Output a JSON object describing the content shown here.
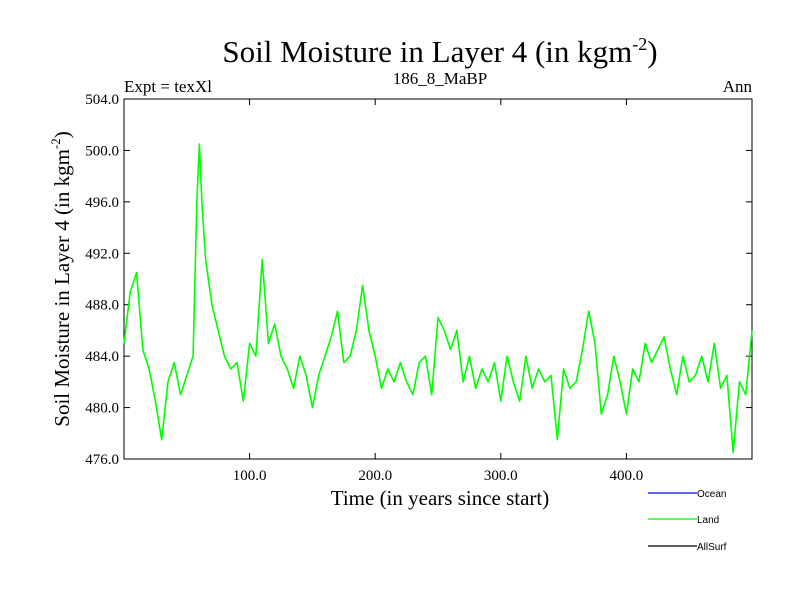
{
  "chart_data": {
    "type": "line",
    "title": "Soil Moisture in Layer 4 (in kgm",
    "title_superscript": "-2",
    "title_suffix": ")",
    "subtitle_left": "Expt = texXl",
    "subtitle_center": "186_8_MaBP",
    "subtitle_right": "Ann",
    "xlabel": "Time (in years since start)",
    "ylabel": "Soil Moisture in Layer 4 (in kgm",
    "ylabel_superscript": "-2",
    "ylabel_suffix": ")",
    "xlim": [
      0,
      500
    ],
    "ylim": [
      476,
      504
    ],
    "xticks": [
      100,
      200,
      300,
      400
    ],
    "xtick_labels": [
      "100.0",
      "200.0",
      "300.0",
      "400.0"
    ],
    "yticks": [
      476,
      480,
      484,
      488,
      492,
      496,
      500,
      504
    ],
    "ytick_labels": [
      "476.0",
      "480.0",
      "484.0",
      "488.0",
      "492.0",
      "496.0",
      "500.0",
      "504.0"
    ],
    "legend_position": "bottom-right",
    "colors": {
      "Ocean": "#0000ff",
      "Land": "#00ff00",
      "AllSurf": "#000000"
    },
    "series": [
      {
        "name": "Ocean",
        "values": []
      },
      {
        "name": "Land",
        "x": [
          0,
          5,
          10,
          15,
          20,
          25,
          30,
          35,
          40,
          45,
          50,
          55,
          58,
          60,
          62,
          65,
          70,
          75,
          80,
          85,
          90,
          95,
          100,
          105,
          110,
          112,
          115,
          120,
          125,
          130,
          135,
          140,
          145,
          150,
          155,
          160,
          165,
          170,
          175,
          180,
          185,
          190,
          195,
          200,
          205,
          210,
          215,
          220,
          225,
          230,
          235,
          240,
          245,
          250,
          255,
          260,
          265,
          270,
          275,
          280,
          285,
          290,
          295,
          300,
          305,
          310,
          315,
          320,
          325,
          330,
          335,
          340,
          345,
          350,
          355,
          360,
          365,
          370,
          375,
          380,
          385,
          390,
          395,
          400,
          405,
          410,
          415,
          420,
          425,
          430,
          435,
          440,
          445,
          450,
          455,
          460,
          465,
          470,
          475,
          480,
          485,
          490,
          495,
          500
        ],
        "values": [
          485,
          489,
          490.5,
          484.5,
          483,
          480.5,
          477.5,
          482,
          483.5,
          481,
          482.5,
          484,
          496,
          500.5,
          496,
          491.5,
          488,
          486,
          484,
          483,
          483.5,
          480.5,
          485,
          484,
          491.5,
          489,
          485,
          486.5,
          484,
          483,
          481.5,
          484,
          482.5,
          480,
          482.5,
          484,
          485.5,
          487.5,
          483.5,
          484,
          486,
          489.5,
          486,
          484,
          481.5,
          483,
          482,
          483.5,
          482,
          481,
          483.5,
          484,
          481,
          487,
          486,
          484.5,
          486,
          482,
          484,
          481.5,
          483,
          482,
          483.5,
          480.5,
          484,
          482,
          480.5,
          484,
          481.5,
          483,
          482,
          482.5,
          477.5,
          483,
          481.5,
          482,
          484.5,
          487.5,
          485,
          479.5,
          481,
          484,
          482,
          479.5,
          483,
          482,
          485,
          483.5,
          484.5,
          485.5,
          483,
          481,
          484,
          482,
          482.5,
          484,
          482,
          485,
          481.5,
          482.5,
          476.5,
          482,
          481,
          486
        ]
      },
      {
        "name": "AllSurf",
        "values": []
      }
    ]
  }
}
